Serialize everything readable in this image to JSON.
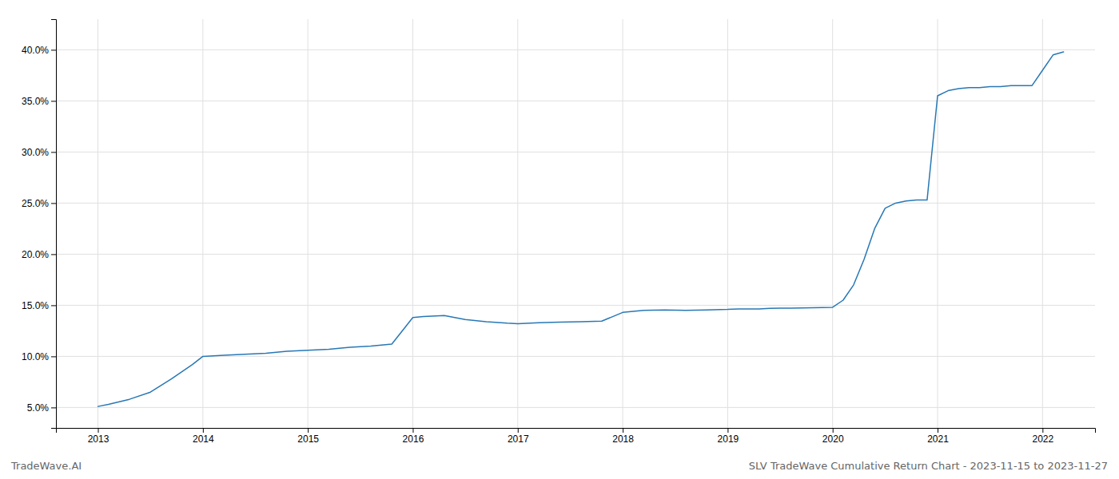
{
  "chart_data": {
    "type": "line",
    "title": "SLV TradeWave Cumulative Return Chart - 2023-11-15 to 2023-11-27",
    "annotations": [
      "TradeWave.AI"
    ],
    "color": "#2878b5",
    "grid": true,
    "x": [
      2013.0,
      2013.1,
      2013.3,
      2013.5,
      2013.7,
      2013.9,
      2014.0,
      2014.2,
      2014.4,
      2014.6,
      2014.8,
      2015.0,
      2015.2,
      2015.4,
      2015.6,
      2015.8,
      2016.0,
      2016.1,
      2016.3,
      2016.5,
      2016.7,
      2016.9,
      2017.0,
      2017.2,
      2017.4,
      2017.6,
      2017.8,
      2018.0,
      2018.2,
      2018.4,
      2018.6,
      2018.8,
      2019.0,
      2019.1,
      2019.2,
      2019.3,
      2019.4,
      2019.5,
      2019.6,
      2019.7,
      2019.8,
      2019.9,
      2020.0,
      2020.1,
      2020.2,
      2020.3,
      2020.4,
      2020.5,
      2020.6,
      2020.7,
      2020.8,
      2020.9,
      2021.0,
      2021.1,
      2021.2,
      2021.3,
      2021.4,
      2021.5,
      2021.6,
      2021.7,
      2021.8,
      2021.9,
      2022.0,
      2022.1,
      2022.2
    ],
    "values": [
      5.1,
      5.3,
      5.8,
      6.5,
      7.8,
      9.2,
      10.0,
      10.1,
      10.2,
      10.3,
      10.5,
      10.6,
      10.7,
      10.9,
      11.0,
      11.2,
      13.8,
      13.9,
      14.0,
      13.6,
      13.4,
      13.25,
      13.2,
      13.3,
      13.35,
      13.4,
      13.45,
      14.3,
      14.5,
      14.55,
      14.5,
      14.55,
      14.6,
      14.65,
      14.65,
      14.65,
      14.7,
      14.72,
      14.72,
      14.73,
      14.75,
      14.78,
      14.8,
      15.5,
      17.0,
      19.5,
      22.5,
      24.5,
      25.0,
      25.2,
      25.3,
      25.3,
      35.5,
      36.0,
      36.2,
      36.3,
      36.3,
      36.4,
      36.4,
      36.5,
      36.5,
      36.5,
      38.0,
      39.5,
      39.8
    ],
    "xlim": [
      2012.6,
      2022.5
    ],
    "ylim": [
      3.0,
      43.0
    ],
    "xticks": [
      2013,
      2014,
      2015,
      2016,
      2017,
      2018,
      2019,
      2020,
      2021,
      2022
    ],
    "yticks": [
      {
        "value": 5.0,
        "label": "5.0%"
      },
      {
        "value": 10.0,
        "label": "10.0%"
      },
      {
        "value": 15.0,
        "label": "15.0%"
      },
      {
        "value": 20.0,
        "label": "20.0%"
      },
      {
        "value": 25.0,
        "label": "25.0%"
      },
      {
        "value": 30.0,
        "label": "30.0%"
      },
      {
        "value": 35.0,
        "label": "35.0%"
      },
      {
        "value": 40.0,
        "label": "40.0%"
      }
    ]
  }
}
